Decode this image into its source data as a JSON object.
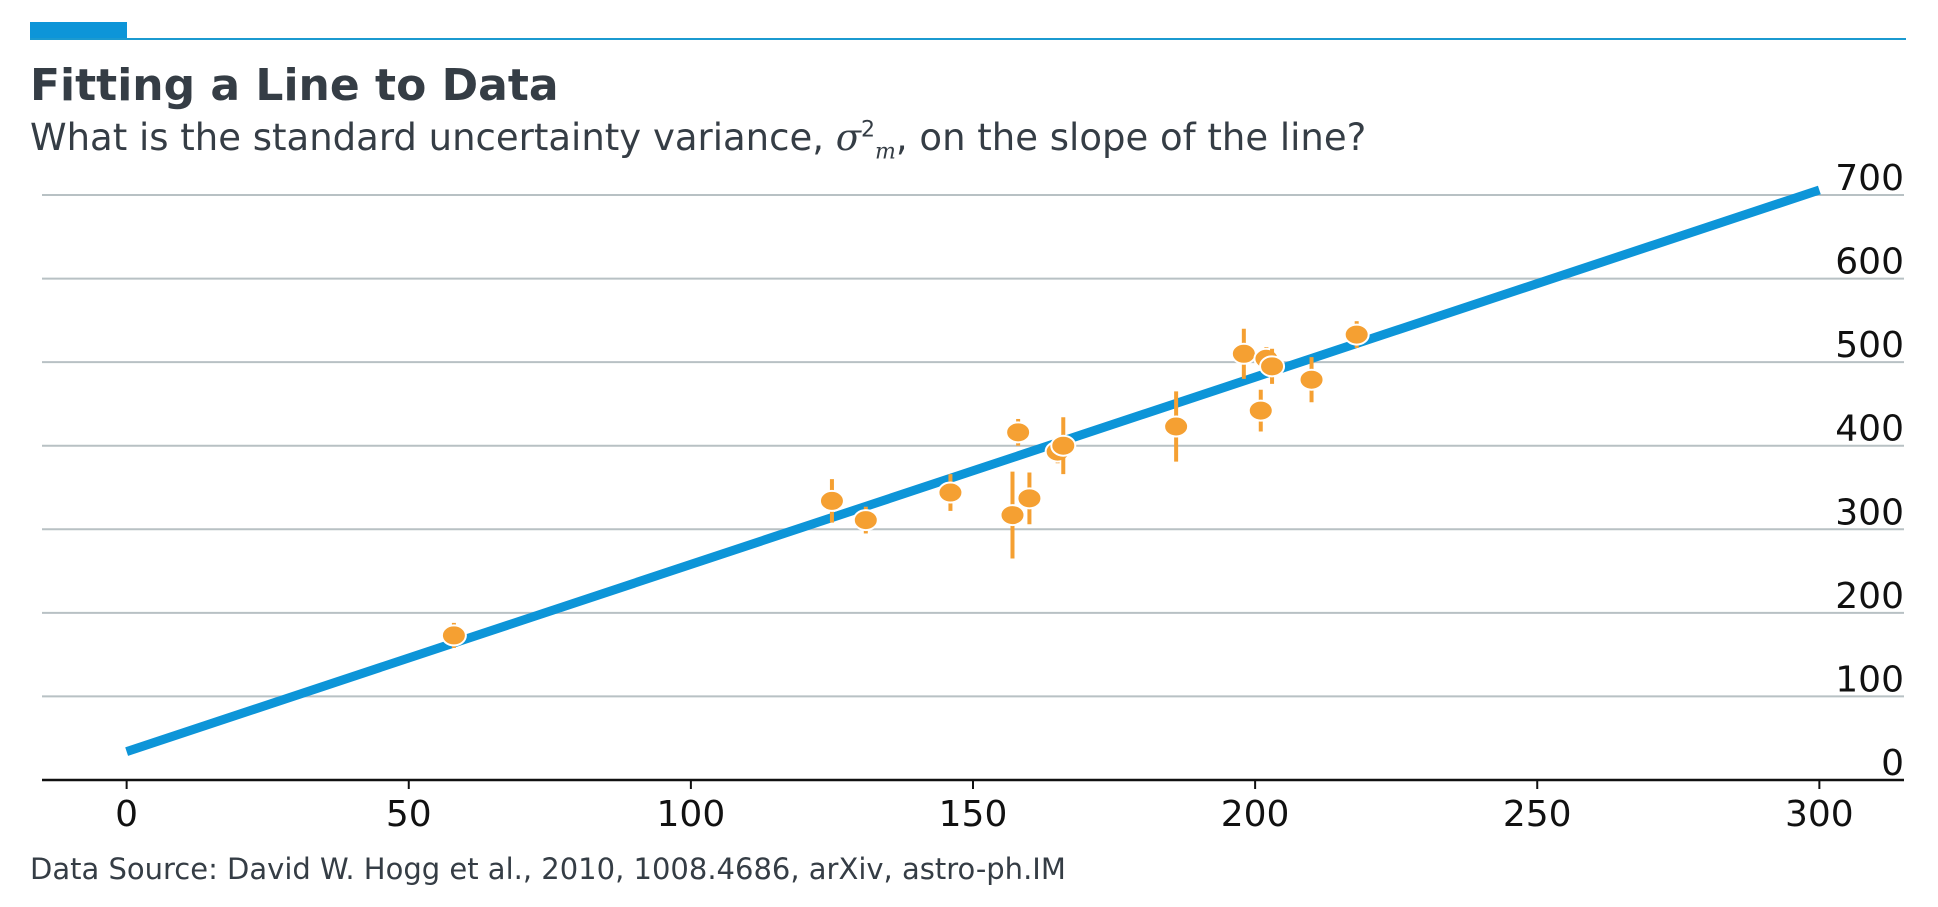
{
  "title": "Fitting a Line to Data",
  "subtitle": {
    "before": "What is the standard uncertainty variance, ",
    "symbol": "σ",
    "superscript": "2",
    "subscript": "m",
    "after": ", on the slope of the line?"
  },
  "source": "Data Source: David W. Hogg et al., 2010, 1008.4686, arXiv, astro-ph.IM",
  "colors": {
    "accent": "#0d95d8",
    "fit_line": "#0d95d8",
    "points": "#f5a032",
    "grid": "#b8c1c4",
    "text": "#353d45"
  },
  "chart_data": {
    "type": "scatter",
    "xlim": [
      -15,
      315
    ],
    "ylim": [
      0,
      700
    ],
    "x_ticks": [
      0,
      50,
      100,
      150,
      200,
      250,
      300
    ],
    "y_ticks": [
      0,
      100,
      200,
      300,
      400,
      500,
      600,
      700
    ],
    "grid": "horizontal",
    "fit_line": {
      "slope": 2.24,
      "intercept": 34,
      "x_range": [
        0,
        300
      ]
    },
    "points": [
      {
        "x": 58,
        "y": 173,
        "err": 15
      },
      {
        "x": 125,
        "y": 334,
        "err": 26
      },
      {
        "x": 131,
        "y": 311,
        "err": 16
      },
      {
        "x": 146,
        "y": 344,
        "err": 22
      },
      {
        "x": 157,
        "y": 317,
        "err": 52
      },
      {
        "x": 158,
        "y": 416,
        "err": 16
      },
      {
        "x": 160,
        "y": 337,
        "err": 31
      },
      {
        "x": 165,
        "y": 393,
        "err": 14
      },
      {
        "x": 166,
        "y": 400,
        "err": 34
      },
      {
        "x": 186,
        "y": 423,
        "err": 42
      },
      {
        "x": 198,
        "y": 510,
        "err": 30
      },
      {
        "x": 201,
        "y": 442,
        "err": 25
      },
      {
        "x": 202,
        "y": 504,
        "err": 14
      },
      {
        "x": 203,
        "y": 495,
        "err": 21
      },
      {
        "x": 210,
        "y": 479,
        "err": 27
      },
      {
        "x": 218,
        "y": 533,
        "err": 16
      }
    ]
  }
}
